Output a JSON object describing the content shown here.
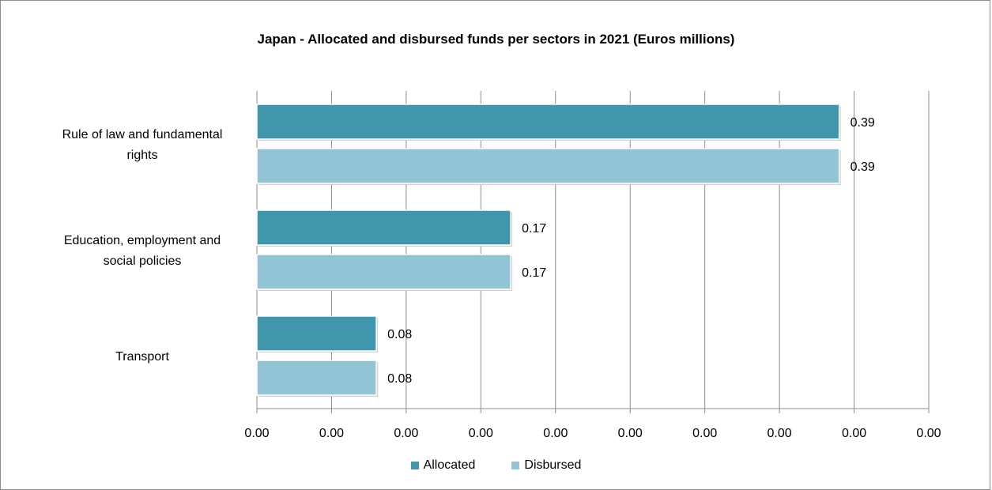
{
  "chart_data": {
    "type": "bar",
    "orientation": "horizontal",
    "title": "Japan - Allocated and disbursed funds per sectors in 2021 (Euros millions)",
    "categories": [
      "Rule of law and fundamental rights",
      "Education, employment and social policies",
      "Transport"
    ],
    "series": [
      {
        "name": "Allocated",
        "color": "#4097ab",
        "values": [
          0.39,
          0.17,
          0.08
        ],
        "labels": [
          "0.39",
          "0.17",
          "0.08"
        ]
      },
      {
        "name": "Disbursed",
        "color": "#93c4d6",
        "values": [
          0.39,
          0.17,
          0.08
        ],
        "labels": [
          "0.39",
          "0.17",
          "0.08"
        ]
      }
    ],
    "xlim": [
      0,
      0.45
    ],
    "x_tick_labels": [
      "0.00",
      "0.00",
      "0.00",
      "0.00",
      "0.00",
      "0.00",
      "0.00",
      "0.00",
      "0.00",
      "0.00"
    ],
    "grid": "vertical",
    "legend_position": "bottom"
  }
}
